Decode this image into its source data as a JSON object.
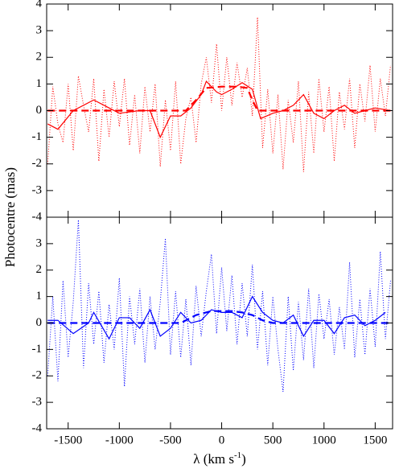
{
  "chart_data": [
    {
      "type": "line",
      "ylabel": "Photocentre (mas)",
      "xlim": [
        -1710,
        1670
      ],
      "xticks": [
        -1500,
        -1000,
        -500,
        0,
        500,
        1000,
        1500
      ],
      "ylim": [
        -4,
        4
      ],
      "yticks": [
        -4,
        -3,
        -2,
        -1,
        0,
        1,
        2,
        3,
        4
      ],
      "series": [
        {
          "color": "#ff0000",
          "style": "dotted",
          "x": [
            -1700,
            -1650,
            -1600,
            -1550,
            -1500,
            -1450,
            -1400,
            -1350,
            -1300,
            -1250,
            -1200,
            -1150,
            -1100,
            -1050,
            -1000,
            -950,
            -900,
            -850,
            -800,
            -750,
            -700,
            -650,
            -600,
            -550,
            -500,
            -450,
            -400,
            -350,
            -300,
            -250,
            -200,
            -150,
            -100,
            -50,
            0,
            50,
            100,
            150,
            200,
            250,
            300,
            350,
            400,
            450,
            500,
            550,
            600,
            650,
            700,
            750,
            800,
            850,
            900,
            950,
            1000,
            1050,
            1100,
            1150,
            1200,
            1250,
            1300,
            1350,
            1400,
            1450,
            1500,
            1550,
            1600,
            1650
          ],
          "values": [
            -2.0,
            0.9,
            -0.5,
            -1.2,
            1.0,
            -1.5,
            1.3,
            0.2,
            -0.8,
            1.2,
            -1.9,
            0.8,
            -1.0,
            1.1,
            -0.6,
            1.2,
            -1.3,
            0.6,
            -1.6,
            0.9,
            -0.8,
            1.0,
            -2.1,
            0.4,
            -1.5,
            1.1,
            -2.0,
            -0.3,
            0.5,
            -1.2,
            1.0,
            2.0,
            0.3,
            2.5,
            0.0,
            2.0,
            0.2,
            1.8,
            0.5,
            1.6,
            -0.2,
            3.5,
            -1.4,
            0.8,
            -1.6,
            0.6,
            -2.2,
            0.4,
            -1.2,
            1.1,
            -2.3,
            0.7,
            -1.6,
            1.2,
            -0.8,
            0.9,
            -1.9,
            0.7,
            -0.7,
            1.2,
            -1.4,
            1.0,
            -0.4,
            1.7,
            -0.8,
            1.2,
            -0.2,
            1.7
          ]
        },
        {
          "color": "#ff0000",
          "style": "solid",
          "x": [
            -1700,
            -1600,
            -1450,
            -1250,
            -1100,
            -1000,
            -800,
            -700,
            -600,
            -500,
            -400,
            -300,
            -200,
            -150,
            -50,
            0,
            100,
            200,
            300,
            380,
            500,
            600,
            700,
            800,
            900,
            1000,
            1100,
            1200,
            1300,
            1400,
            1500,
            1650
          ],
          "values": [
            -0.5,
            -0.7,
            0,
            0.4,
            0.1,
            -0.1,
            0,
            0,
            -1,
            -0.2,
            -0.2,
            0.1,
            0.6,
            1.1,
            0.7,
            0.6,
            0.8,
            1.05,
            0.8,
            -0.3,
            -0.1,
            0,
            0.2,
            0.6,
            -0.1,
            -0.3,
            0,
            0.2,
            -0.1,
            0,
            0.1,
            0
          ]
        },
        {
          "color": "#ff0000",
          "style": "dashed",
          "x": [
            -1700,
            -350,
            -250,
            -150,
            0,
            150,
            250,
            300,
            350,
            1650
          ],
          "values": [
            0,
            0,
            0.4,
            0.85,
            0.9,
            0.9,
            0.85,
            0.4,
            0,
            0
          ]
        }
      ]
    },
    {
      "type": "line",
      "xlabel": {
        "text": "λ (km s",
        "sup": "-1",
        "end": ")"
      },
      "xlim": [
        -1710,
        1670
      ],
      "xticks": [
        -1500,
        -1000,
        -500,
        0,
        500,
        1000,
        1500
      ],
      "ylim": [
        -4,
        4
      ],
      "yticks": [
        -4,
        -3,
        -2,
        -1,
        0,
        1,
        2,
        3
      ],
      "series": [
        {
          "color": "#0000ff",
          "style": "dotted",
          "x": [
            -1700,
            -1650,
            -1600,
            -1550,
            -1500,
            -1450,
            -1400,
            -1350,
            -1300,
            -1250,
            -1200,
            -1150,
            -1100,
            -1050,
            -1000,
            -950,
            -900,
            -850,
            -800,
            -750,
            -700,
            -650,
            -600,
            -550,
            -500,
            -450,
            -400,
            -350,
            -300,
            -250,
            -200,
            -150,
            -100,
            -50,
            0,
            50,
            100,
            150,
            200,
            250,
            300,
            350,
            400,
            450,
            500,
            550,
            600,
            650,
            700,
            750,
            800,
            850,
            900,
            950,
            1000,
            1050,
            1100,
            1150,
            1200,
            1250,
            1300,
            1350,
            1400,
            1450,
            1500,
            1550,
            1600,
            1650
          ],
          "values": [
            -2.0,
            1.0,
            -2.2,
            1.6,
            -1.3,
            0.8,
            3.9,
            -1.7,
            1.5,
            -0.8,
            1.2,
            -1.5,
            0.7,
            -1.0,
            1.7,
            -2.4,
            1.0,
            -0.8,
            1.3,
            -1.5,
            1.0,
            -1.0,
            0.8,
            3.2,
            -1.2,
            1.2,
            -1.3,
            0.9,
            -1.6,
            1.4,
            -0.5,
            1.2,
            2.6,
            -0.4,
            2.1,
            -0.3,
            1.8,
            -0.8,
            1.5,
            -0.5,
            2.2,
            -1.0,
            1.2,
            -1.6,
            1.0,
            -1.0,
            -2.6,
            1.0,
            -1.8,
            0.8,
            -1.4,
            1.3,
            -1.7,
            1.1,
            -0.6,
            0.9,
            -1.2,
            0.6,
            -1.0,
            2.3,
            -1.3,
            0.9,
            -1.2,
            1.3,
            -0.9,
            2.7,
            -0.6,
            1.6
          ]
        },
        {
          "color": "#0000ff",
          "style": "solid",
          "x": [
            -1700,
            -1600,
            -1450,
            -1300,
            -1250,
            -1100,
            -1000,
            -900,
            -800,
            -700,
            -600,
            -500,
            -400,
            -300,
            -200,
            -100,
            0,
            100,
            200,
            300,
            400,
            500,
            600,
            700,
            800,
            900,
            1000,
            1100,
            1200,
            1300,
            1400,
            1500,
            1600
          ],
          "values": [
            0.1,
            0.1,
            -0.4,
            0,
            0.4,
            -0.6,
            0.2,
            0.2,
            -0.2,
            0.5,
            -0.5,
            -0.2,
            0.4,
            0,
            0.1,
            0.5,
            0.4,
            0.4,
            0.2,
            1.0,
            0.4,
            0.1,
            0.0,
            0.3,
            -0.5,
            0.1,
            0.1,
            -0.4,
            0.2,
            0.3,
            -0.1,
            0.1,
            0.4
          ]
        },
        {
          "color": "#0000ff",
          "style": "dashed",
          "x": [
            -1700,
            -400,
            -250,
            -100,
            0,
            100,
            200,
            300,
            400,
            500,
            1650
          ],
          "values": [
            0,
            0,
            0.3,
            0.45,
            0.45,
            0.45,
            0.4,
            0.3,
            0.1,
            0,
            0
          ]
        }
      ]
    }
  ]
}
